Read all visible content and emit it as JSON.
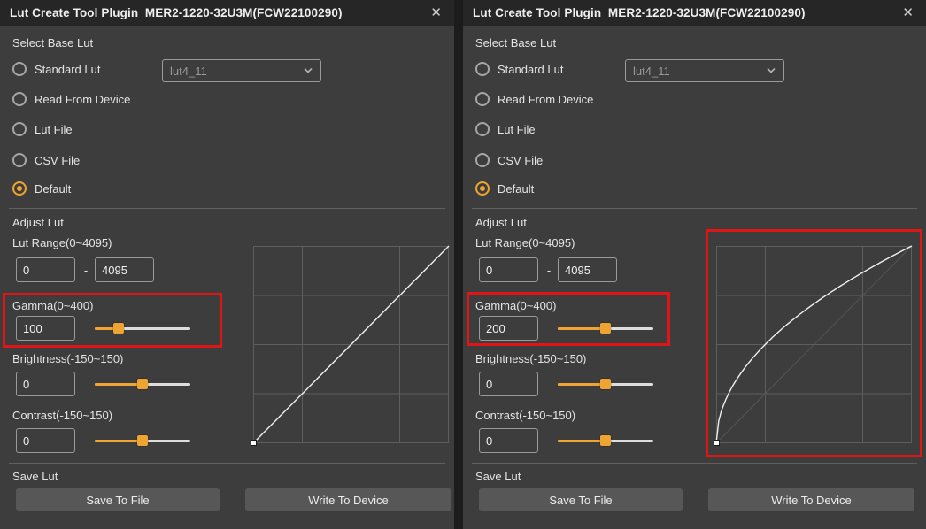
{
  "colors": {
    "accent_orange": "#efa431",
    "highlight_red": "#e01515",
    "titlebar_bg": "#262626",
    "panel_bg": "#3d3d3d",
    "button_bg": "#575757"
  },
  "panels": [
    {
      "title": "Lut Create Tool Plugin  MER2-1220-32U3M(FCW22100290)",
      "close_icon": "✕",
      "select_base_lut": {
        "section_label": "Select Base Lut",
        "standard_lut": {
          "label": "Standard Lut",
          "selected": false,
          "dropdown_value": "lut4_11"
        },
        "read_from_device": {
          "label": "Read From Device",
          "selected": false
        },
        "lut_file": {
          "label": "Lut File",
          "selected": false
        },
        "csv_file": {
          "label": "CSV File",
          "selected": false
        },
        "default": {
          "label": "Default",
          "selected": true
        }
      },
      "adjust_lut": {
        "section_label": "Adjust Lut",
        "lut_range": {
          "label": "Lut Range(0~4095)",
          "min_value": "0",
          "separator": "-",
          "max_value": "4095"
        },
        "gamma": {
          "label": "Gamma(0~400)",
          "value": "100",
          "slider_percent": 25
        },
        "brightness": {
          "label": "Brightness(-150~150)",
          "value": "0",
          "slider_percent": 50
        },
        "contrast": {
          "label": "Contrast(-150~150)",
          "value": "0",
          "slider_percent": 50
        }
      },
      "curve": {
        "gamma": 100,
        "shape": "linear",
        "grid_rows": 4,
        "grid_cols": 4,
        "marker_point": "origin"
      },
      "highlights": {
        "gamma_controls": true,
        "curve_plot": false
      },
      "save_lut": {
        "section_label": "Save Lut",
        "save_to_file_label": "Save To File",
        "write_to_device_label": "Write To Device"
      }
    },
    {
      "title": "Lut Create Tool Plugin  MER2-1220-32U3M(FCW22100290)",
      "close_icon": "✕",
      "select_base_lut": {
        "section_label": "Select Base Lut",
        "standard_lut": {
          "label": "Standard Lut",
          "selected": false,
          "dropdown_value": "lut4_11"
        },
        "read_from_device": {
          "label": "Read From Device",
          "selected": false
        },
        "lut_file": {
          "label": "Lut File",
          "selected": false
        },
        "csv_file": {
          "label": "CSV File",
          "selected": false
        },
        "default": {
          "label": "Default",
          "selected": true
        }
      },
      "adjust_lut": {
        "section_label": "Adjust Lut",
        "lut_range": {
          "label": "Lut Range(0~4095)",
          "min_value": "0",
          "separator": "-",
          "max_value": "4095"
        },
        "gamma": {
          "label": "Gamma(0~400)",
          "value": "200",
          "slider_percent": 50
        },
        "brightness": {
          "label": "Brightness(-150~150)",
          "value": "0",
          "slider_percent": 50
        },
        "contrast": {
          "label": "Contrast(-150~150)",
          "value": "0",
          "slider_percent": 50
        }
      },
      "curve": {
        "gamma": 200,
        "shape": "concave-gamma",
        "grid_rows": 4,
        "grid_cols": 4,
        "marker_point": "origin"
      },
      "highlights": {
        "gamma_controls": true,
        "curve_plot": true
      },
      "save_lut": {
        "section_label": "Save Lut",
        "save_to_file_label": "Save To File",
        "write_to_device_label": "Write To Device"
      }
    }
  ]
}
